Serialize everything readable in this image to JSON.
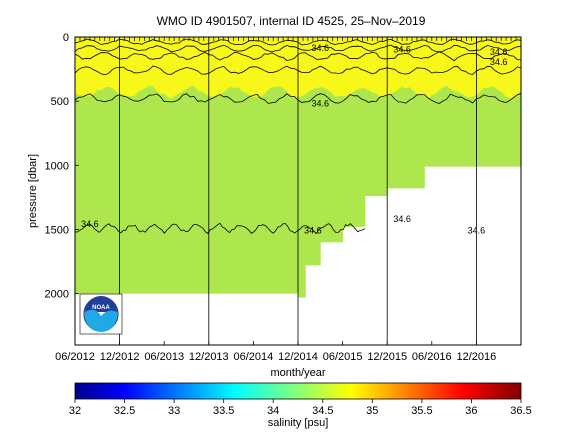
{
  "chart_data": {
    "type": "heatmap",
    "title": "WMO ID 4901507, internal ID 4525, 25–Nov–2019",
    "xlabel": "month/year",
    "ylabel": "pressure [dbar]",
    "xlim": [
      "2012-06",
      "2017-06"
    ],
    "ylim": [
      2400,
      0
    ],
    "x_ticks": [
      "06/2012",
      "12/2012",
      "06/2013",
      "12/2013",
      "06/2014",
      "12/2014",
      "06/2015",
      "12/2015",
      "06/2016",
      "12/2016"
    ],
    "y_ticks": [
      0,
      500,
      1000,
      1500,
      2000
    ],
    "vertical_grid_at": [
      "12/2012",
      "12/2013",
      "12/2014",
      "12/2015",
      "12/2016"
    ],
    "colorbar": {
      "label": "salinity [psu]",
      "ticks": [
        32,
        32.5,
        33,
        33.5,
        34,
        34.5,
        35,
        35.5,
        36,
        36.5
      ],
      "range": [
        32,
        36.5
      ],
      "colormap": "jet"
    },
    "fill_colors": {
      "surface_layer": "#f7f71a",
      "intermediate_layer": "#aee64e"
    },
    "profile_depth_segments": [
      {
        "from": "2012-06",
        "to": "2014-12",
        "max_pressure": 2000
      },
      {
        "from": "2014-12",
        "to": "2015-01",
        "max_pressure": 2030
      },
      {
        "from": "2015-01",
        "to": "2015-03",
        "max_pressure": 1780
      },
      {
        "from": "2015-03",
        "to": "2015-06",
        "max_pressure": 1600
      },
      {
        "from": "2015-06",
        "to": "2015-09",
        "max_pressure": 1480
      },
      {
        "from": "2015-09",
        "to": "2015-12",
        "max_pressure": 1240
      },
      {
        "from": "2015-12",
        "to": "2016-05",
        "max_pressure": 1180
      },
      {
        "from": "2016-05",
        "to": "2017-06",
        "max_pressure": 1010
      }
    ],
    "contour_labels": [
      {
        "text": "34.6",
        "x": "2012-08",
        "pressure": 1480
      },
      {
        "text": "34.6",
        "x": "2015-02",
        "pressure": 1530
      },
      {
        "text": "34.6",
        "x": "2016-02",
        "pressure": 1440
      },
      {
        "text": "34.6",
        "x": "2016-12",
        "pressure": 1530
      },
      {
        "text": "34.6",
        "x": "2015-03",
        "pressure": 540
      },
      {
        "text": "34.6",
        "x": "2015-03",
        "pressure": 110
      },
      {
        "text": "34.6",
        "x": "2016-02",
        "pressure": 120
      },
      {
        "text": "34.6",
        "x": "2017-03",
        "pressure": 140
      },
      {
        "text": "34.6",
        "x": "2017-03",
        "pressure": 220
      }
    ],
    "logo_text": "NOAA"
  }
}
